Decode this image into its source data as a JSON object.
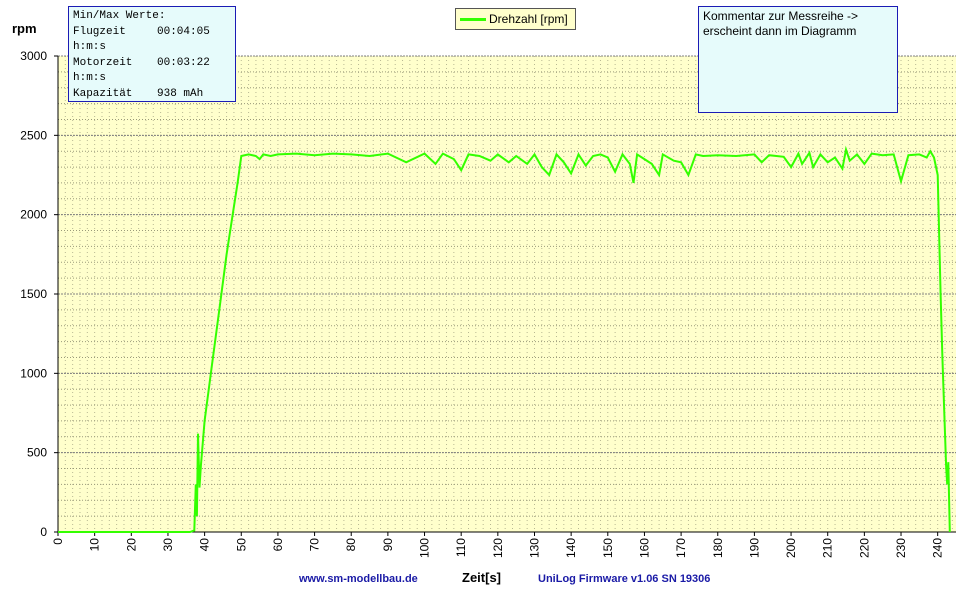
{
  "chart_data": {
    "type": "line",
    "title": "",
    "xlabel": "Zeit[s]",
    "ylabel": "rpm",
    "xlim": [
      0,
      245
    ],
    "ylim": [
      0,
      3000
    ],
    "x_ticks": [
      0,
      10,
      20,
      30,
      40,
      50,
      60,
      70,
      80,
      90,
      100,
      110,
      120,
      130,
      140,
      150,
      160,
      170,
      180,
      190,
      200,
      210,
      220,
      230,
      240
    ],
    "y_ticks": [
      0,
      500,
      1000,
      1500,
      2000,
      2500,
      3000
    ],
    "grid": true,
    "legend_position": "top-center",
    "series": [
      {
        "name": "Drehzahl [rpm]",
        "color": "#33ff00",
        "points": [
          [
            0,
            0
          ],
          [
            10,
            0
          ],
          [
            20,
            0
          ],
          [
            30,
            0
          ],
          [
            36,
            0
          ],
          [
            37.2,
            10
          ],
          [
            37.6,
            300
          ],
          [
            37.9,
            100
          ],
          [
            38.2,
            620
          ],
          [
            38.6,
            280
          ],
          [
            39,
            420
          ],
          [
            40,
            700
          ],
          [
            42,
            1050
          ],
          [
            44,
            1400
          ],
          [
            46,
            1750
          ],
          [
            48,
            2050
          ],
          [
            49,
            2200
          ],
          [
            50,
            2370
          ],
          [
            52,
            2380
          ],
          [
            54,
            2370
          ],
          [
            55,
            2350
          ],
          [
            56,
            2380
          ],
          [
            58,
            2370
          ],
          [
            60,
            2380
          ],
          [
            65,
            2385
          ],
          [
            70,
            2375
          ],
          [
            75,
            2385
          ],
          [
            80,
            2380
          ],
          [
            85,
            2370
          ],
          [
            90,
            2385
          ],
          [
            95,
            2330
          ],
          [
            100,
            2385
          ],
          [
            103,
            2320
          ],
          [
            105,
            2385
          ],
          [
            108,
            2350
          ],
          [
            110,
            2280
          ],
          [
            112,
            2380
          ],
          [
            115,
            2370
          ],
          [
            118,
            2340
          ],
          [
            120,
            2380
          ],
          [
            123,
            2330
          ],
          [
            125,
            2370
          ],
          [
            128,
            2320
          ],
          [
            130,
            2380
          ],
          [
            132,
            2300
          ],
          [
            134,
            2250
          ],
          [
            136,
            2380
          ],
          [
            138,
            2330
          ],
          [
            140,
            2260
          ],
          [
            142,
            2380
          ],
          [
            144,
            2310
          ],
          [
            146,
            2370
          ],
          [
            148,
            2380
          ],
          [
            150,
            2360
          ],
          [
            152,
            2270
          ],
          [
            154,
            2380
          ],
          [
            156,
            2320
          ],
          [
            157,
            2200
          ],
          [
            158,
            2380
          ],
          [
            160,
            2350
          ],
          [
            162,
            2320
          ],
          [
            164,
            2250
          ],
          [
            165,
            2380
          ],
          [
            168,
            2340
          ],
          [
            170,
            2330
          ],
          [
            172,
            2250
          ],
          [
            174,
            2380
          ],
          [
            176,
            2370
          ],
          [
            180,
            2375
          ],
          [
            185,
            2370
          ],
          [
            190,
            2380
          ],
          [
            192,
            2330
          ],
          [
            194,
            2375
          ],
          [
            198,
            2365
          ],
          [
            200,
            2300
          ],
          [
            202,
            2385
          ],
          [
            203,
            2320
          ],
          [
            205,
            2390
          ],
          [
            206,
            2300
          ],
          [
            208,
            2380
          ],
          [
            210,
            2330
          ],
          [
            212,
            2360
          ],
          [
            214,
            2290
          ],
          [
            215,
            2410
          ],
          [
            216,
            2340
          ],
          [
            218,
            2380
          ],
          [
            220,
            2320
          ],
          [
            222,
            2385
          ],
          [
            225,
            2375
          ],
          [
            228,
            2380
          ],
          [
            230,
            2210
          ],
          [
            232,
            2375
          ],
          [
            235,
            2380
          ],
          [
            237,
            2360
          ],
          [
            238,
            2400
          ],
          [
            239,
            2360
          ],
          [
            240,
            2250
          ],
          [
            240.8,
            1500
          ],
          [
            241.3,
            1100
          ],
          [
            241.8,
            750
          ],
          [
            242.3,
            420
          ],
          [
            242.6,
            300
          ],
          [
            242.9,
            440
          ],
          [
            243.3,
            0
          ]
        ]
      }
    ]
  },
  "stats_box": {
    "heading": "Min/Max Werte:",
    "rows": [
      {
        "label": "Flugzeit",
        "value": "00:04:05"
      },
      {
        "label": "h:m:s",
        "value": ""
      },
      {
        "label": "Motorzeit",
        "value": "00:03:22"
      },
      {
        "label": "h:m:s",
        "value": ""
      },
      {
        "label": "Kapazität",
        "value": "938 mAh"
      }
    ]
  },
  "comment_box": {
    "line1": "Kommentar zur Messreihe ->",
    "line2": "erscheint dann im Diagramm"
  },
  "footer": {
    "website": "www.sm-modellbau.de",
    "firmware": "UniLog Firmware v1.06 SN 19306"
  },
  "colors": {
    "plot_background": "#ffffcc",
    "grid_dot": "#9a9a7a",
    "series": "#33ff00",
    "footer_text": "#1a1aa6",
    "box_border": "#1b1bb5",
    "box_background": "#e6fbfb"
  }
}
